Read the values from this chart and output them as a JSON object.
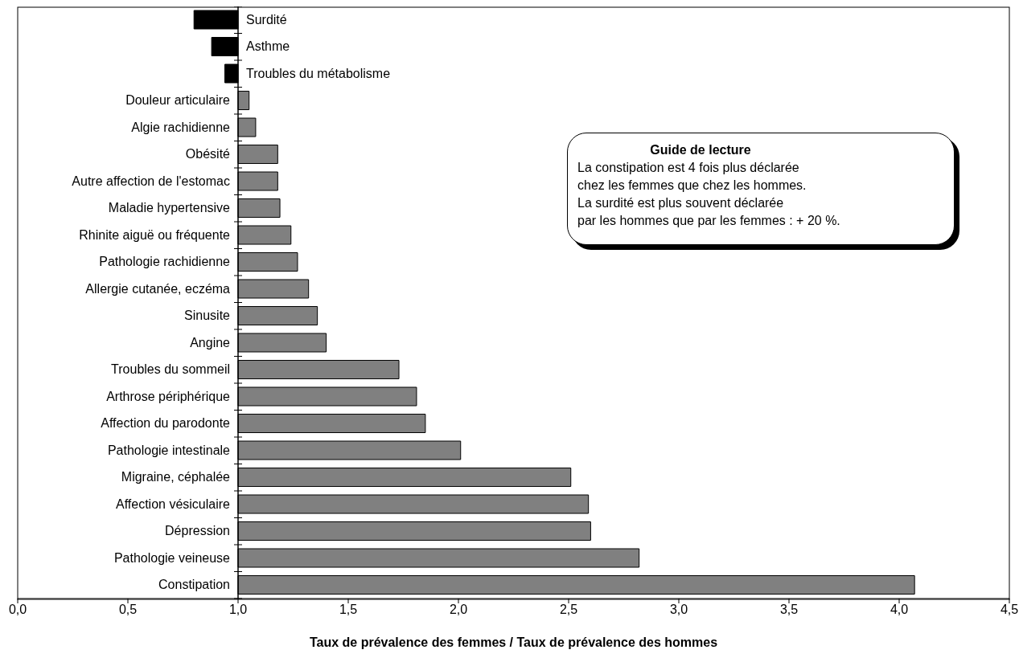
{
  "chart_data": {
    "type": "bar",
    "orientation": "horizontal",
    "xlabel": "Taux de prévalence des femmes / Taux de prévalence des hommes",
    "categories": [
      "Surdité",
      "Asthme",
      "Troubles du métabolisme",
      "Douleur articulaire",
      "Algie rachidienne",
      "Obésité",
      "Autre affection de l'estomac",
      "Maladie hypertensive",
      "Rhinite aiguë ou fréquente",
      "Pathologie rachidienne",
      "Allergie cutanée, eczéma",
      "Sinusite",
      "Angine",
      "Troubles du sommeil",
      "Arthrose périphérique",
      "Affection du parodonte",
      "Pathologie intestinale",
      "Migraine, céphalée",
      "Affection vésiculaire",
      "Dépression",
      "Pathologie veineuse",
      "Constipation"
    ],
    "base": [
      1,
      1,
      1,
      1,
      1,
      1,
      1,
      1,
      1,
      1,
      1,
      1,
      1,
      1,
      1,
      1,
      1,
      1,
      1,
      1,
      1,
      1
    ],
    "values": [
      -0.2,
      -0.12,
      -0.06,
      0.05,
      0.08,
      0.18,
      0.18,
      0.19,
      0.24,
      0.27,
      0.32,
      0.36,
      0.4,
      0.73,
      0.81,
      0.85,
      1.01,
      1.51,
      1.59,
      1.6,
      1.82,
      3.07
    ],
    "colors": [
      "#000000",
      "#000000",
      "#000000",
      "#808080",
      "#808080",
      "#808080",
      "#808080",
      "#808080",
      "#808080",
      "#808080",
      "#808080",
      "#808080",
      "#808080",
      "#808080",
      "#808080",
      "#808080",
      "#808080",
      "#808080",
      "#808080",
      "#808080",
      "#808080",
      "#808080"
    ],
    "xlim": [
      0,
      4.5
    ],
    "xticks": [
      {
        "value": 0,
        "label": "0,0"
      },
      {
        "value": 0.5,
        "label": "0,5"
      },
      {
        "value": 1,
        "label": "1,0"
      },
      {
        "value": 1.5,
        "label": "1,5"
      },
      {
        "value": 2,
        "label": "2,0"
      },
      {
        "value": 2.5,
        "label": "2,5"
      },
      {
        "value": 3,
        "label": "3,0"
      },
      {
        "value": 3.5,
        "label": "3,5"
      },
      {
        "value": 4,
        "label": "4,0"
      },
      {
        "value": 4.5,
        "label": "4,5"
      }
    ],
    "grid": false,
    "legend": false,
    "annotations": [
      "Guide de lecture",
      "La constipation est 4 fois plus déclarée\nchez les femmes que chez les hommes.\nLa surdité est plus souvent déclarée\npar les hommes que par les femmes : + 20 %."
    ]
  }
}
